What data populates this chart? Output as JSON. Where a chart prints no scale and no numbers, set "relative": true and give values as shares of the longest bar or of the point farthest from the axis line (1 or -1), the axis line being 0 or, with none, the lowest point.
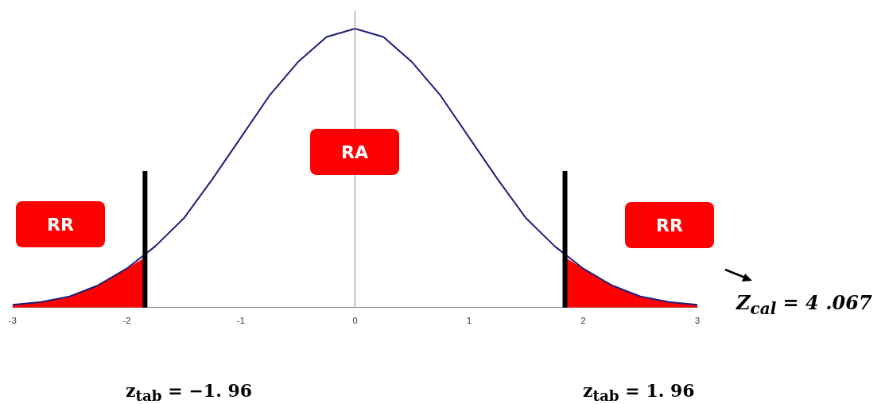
{
  "chart_data": {
    "type": "line",
    "relative": true,
    "xlim": [
      -3,
      3
    ],
    "xticks": [
      -3,
      -2,
      -1,
      0,
      1,
      2,
      3
    ],
    "grid": false,
    "legend": false,
    "marker": "none",
    "series": [
      {
        "type": "line",
        "color": "#1f1f7a",
        "x": [
          -3,
          -2.75,
          -2.5,
          -2.25,
          -2,
          -1.75,
          -1.5,
          -1.25,
          -1,
          -0.75,
          -0.5,
          -0.25,
          0,
          0.25,
          0.5,
          0.75,
          1,
          1.25,
          1.5,
          1.75,
          2,
          2.25,
          2.5,
          2.75,
          3
        ],
        "values": [
          0.01,
          0.02,
          0.04,
          0.08,
          0.14,
          0.22,
          0.32,
          0.46,
          0.61,
          0.76,
          0.88,
          0.97,
          1,
          0.97,
          0.88,
          0.76,
          0.61,
          0.46,
          0.32,
          0.22,
          0.14,
          0.08,
          0.04,
          0.02,
          0.01
        ]
      },
      {
        "type": "area",
        "color": "#ff0000",
        "x": [
          -3,
          -2.75,
          -2.5,
          -2.25,
          -2,
          -1.84
        ],
        "values": [
          0.01,
          0.02,
          0.04,
          0.08,
          0.14,
          0.18
        ]
      },
      {
        "type": "area",
        "color": "#ff0000",
        "x": [
          1.84,
          2,
          2.25,
          2.5,
          2.75,
          3
        ],
        "values": [
          0.18,
          0.14,
          0.08,
          0.04,
          0.02,
          0.01
        ]
      }
    ],
    "ref_lines": [
      {
        "axis": "x",
        "value": 0,
        "color": "#888888"
      },
      {
        "axis": "x",
        "value": -1.84,
        "color": "#000000"
      },
      {
        "axis": "x",
        "value": 1.84,
        "color": "#000000"
      }
    ],
    "annotations": [
      "RR",
      "RA",
      "RR",
      "Z$_{cal}$ = 4 .067",
      "z$_{tab}$ = −1. 96",
      "z$_{tab}$ = 1. 96"
    ]
  }
}
